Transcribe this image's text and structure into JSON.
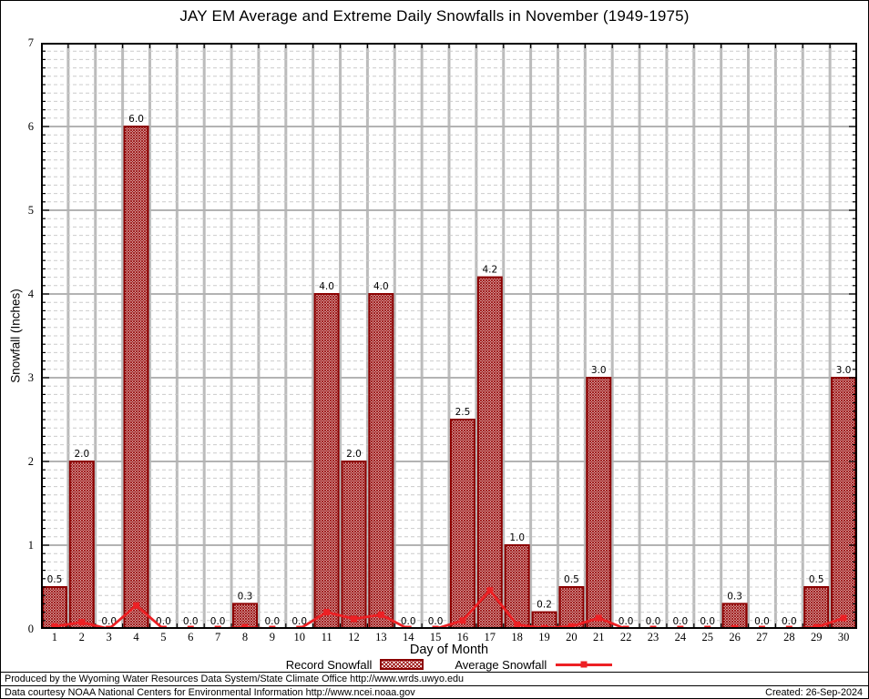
{
  "title": "JAY EM Average and Extreme Daily Snowfalls in November (1949-1975)",
  "chart_data": {
    "type": "bar",
    "title": "JAY EM Average and Extreme Daily Snowfalls in November (1949-1975)",
    "xlabel": "Day of Month",
    "ylabel": "Snowfall (Inches)",
    "ylim": [
      0,
      7
    ],
    "y_major_step": 1,
    "y_minor_step": 0.1,
    "grid": "on",
    "legend_position": "bottom",
    "categories": [
      1,
      2,
      3,
      4,
      5,
      6,
      7,
      8,
      9,
      10,
      11,
      12,
      13,
      14,
      15,
      16,
      17,
      18,
      19,
      20,
      21,
      22,
      23,
      24,
      25,
      26,
      27,
      28,
      29,
      30
    ],
    "series": [
      {
        "name": "Record Snowfall",
        "type": "bar",
        "values": [
          0.5,
          2.0,
          0.0,
          6.0,
          0.0,
          0.0,
          0.0,
          0.3,
          0.0,
          0.0,
          4.0,
          2.0,
          4.0,
          0.0,
          0.0,
          2.5,
          4.2,
          1.0,
          0.2,
          0.5,
          3.0,
          0.0,
          0.0,
          0.0,
          0.0,
          0.3,
          0.0,
          0.0,
          0.5,
          3.0
        ],
        "labels": [
          "0.5",
          "2.0",
          "0.0",
          "6.0",
          "0.0",
          "0.0",
          "0.0",
          "0.3",
          "0.0",
          "0.0",
          "4.0",
          "2.0",
          "4.0",
          "0.0",
          "0.0",
          "2.5",
          "4.2",
          "1.0",
          "0.2",
          "0.5",
          "3.0",
          "0.0",
          "0.0",
          "0.0",
          "0.0",
          "0.3",
          "0.0",
          "0.0",
          "0.5",
          "3.0"
        ]
      },
      {
        "name": "Average Snowfall",
        "type": "line",
        "values": [
          0.03,
          0.08,
          0.0,
          0.28,
          0.0,
          0.0,
          0.0,
          0.02,
          0.0,
          0.0,
          0.2,
          0.12,
          0.17,
          0.0,
          0.0,
          0.1,
          0.46,
          0.05,
          0.01,
          0.03,
          0.13,
          0.0,
          0.0,
          0.0,
          0.0,
          0.01,
          0.0,
          0.0,
          0.02,
          0.13
        ]
      }
    ]
  },
  "legend": {
    "record_label": "Record Snowfall",
    "average_label": "Average Snowfall"
  },
  "footer": {
    "line1": "Produced by the Wyoming Water Resources Data System/State Climate Office http://www.wrds.uwyo.edu",
    "line2": "Data courtesy NOAA National Centers for Environmental Information http://www.ncei.noaa.gov",
    "created": "Created: 26-Sep-2024"
  },
  "colors": {
    "bar_edge": "#8b0000",
    "bar_hatch": "#9b1111",
    "line": "#ed2024",
    "grid_major": "#b3b3b3",
    "grid_minor": "#cccccc",
    "grid_vertical": "#bbbbbb",
    "axis": "#000000"
  }
}
